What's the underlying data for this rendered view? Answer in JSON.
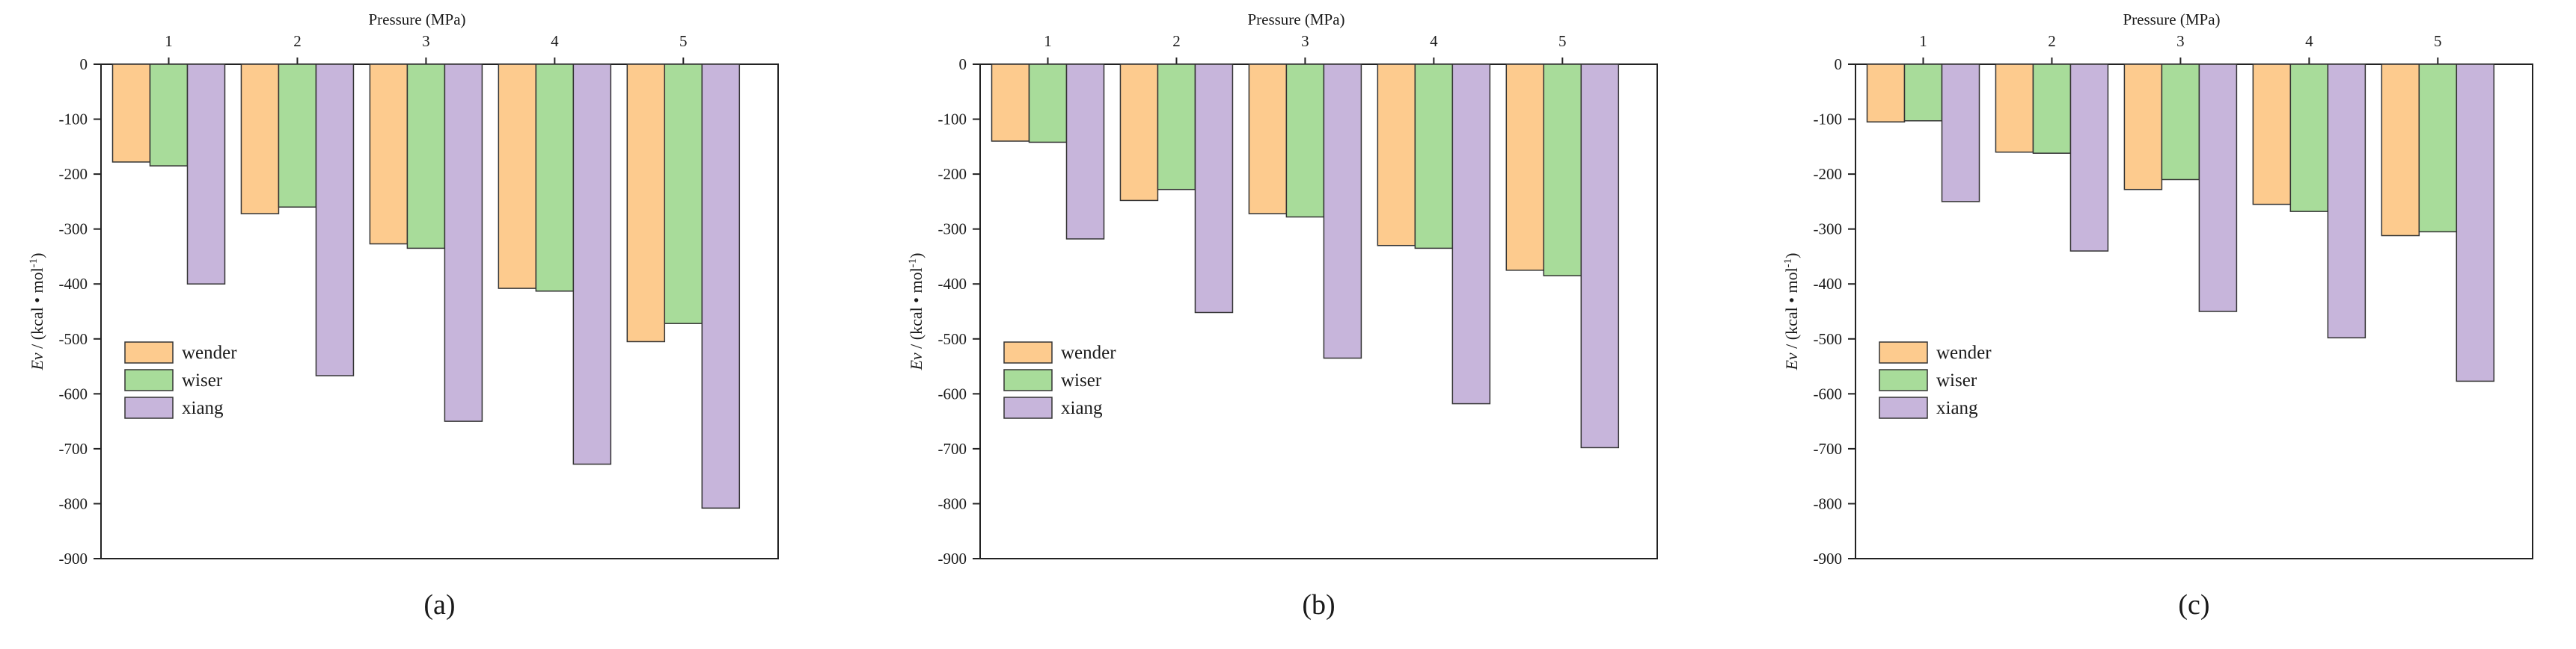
{
  "figure": {
    "colors": {
      "wender": "#FDCB8E",
      "wiser": "#A8DC9A",
      "xiang": "#C7B5DB",
      "axis": "#222222"
    },
    "chart_data": [
      {
        "type": "bar",
        "panel_label": "(a)",
        "title": "Pressure (MPa)",
        "xlabel": "Pressure (MPa)",
        "ylabel": "Ev / (kcal • mol⁻¹)",
        "categories": [
          "1",
          "2",
          "3",
          "4",
          "5"
        ],
        "ylim": [
          -900,
          0
        ],
        "yticks": [
          0,
          -100,
          -200,
          -300,
          -400,
          -500,
          -600,
          -700,
          -800,
          -900
        ],
        "legend_position": "left-middle",
        "series": [
          {
            "name": "wender",
            "values": [
              -178,
              -272,
              -327,
              -408,
              -505
            ]
          },
          {
            "name": "wiser",
            "values": [
              -185,
              -260,
              -335,
              -413,
              -472
            ]
          },
          {
            "name": "xiang",
            "values": [
              -400,
              -567,
              -650,
              -728,
              -808
            ]
          }
        ]
      },
      {
        "type": "bar",
        "panel_label": "(b)",
        "title": "Pressure (MPa)",
        "xlabel": "Pressure (MPa)",
        "ylabel": "Ev / (kcal • mol⁻¹)",
        "categories": [
          "1",
          "2",
          "3",
          "4",
          "5"
        ],
        "ylim": [
          -900,
          0
        ],
        "yticks": [
          0,
          -100,
          -200,
          -300,
          -400,
          -500,
          -600,
          -700,
          -800,
          -900
        ],
        "legend_position": "left-middle",
        "series": [
          {
            "name": "wender",
            "values": [
              -140,
              -248,
              -272,
              -330,
              -375
            ]
          },
          {
            "name": "wiser",
            "values": [
              -142,
              -228,
              -278,
              -335,
              -385
            ]
          },
          {
            "name": "xiang",
            "values": [
              -318,
              -452,
              -535,
              -618,
              -698
            ]
          }
        ]
      },
      {
        "type": "bar",
        "panel_label": "(c)",
        "title": "Pressure (MPa)",
        "xlabel": "Pressure (MPa)",
        "ylabel": "Ev / (kcal • mol⁻¹)",
        "categories": [
          "1",
          "2",
          "3",
          "4",
          "5"
        ],
        "ylim": [
          -900,
          0
        ],
        "yticks": [
          0,
          -100,
          -200,
          -300,
          -400,
          -500,
          -600,
          -700,
          -800,
          -900
        ],
        "legend_position": "left-middle",
        "series": [
          {
            "name": "wender",
            "values": [
              -105,
              -160,
              -228,
              -255,
              -312
            ]
          },
          {
            "name": "wiser",
            "values": [
              -103,
              -162,
              -210,
              -268,
              -305
            ]
          },
          {
            "name": "xiang",
            "values": [
              -250,
              -340,
              -450,
              -498,
              -577
            ]
          }
        ]
      }
    ]
  }
}
